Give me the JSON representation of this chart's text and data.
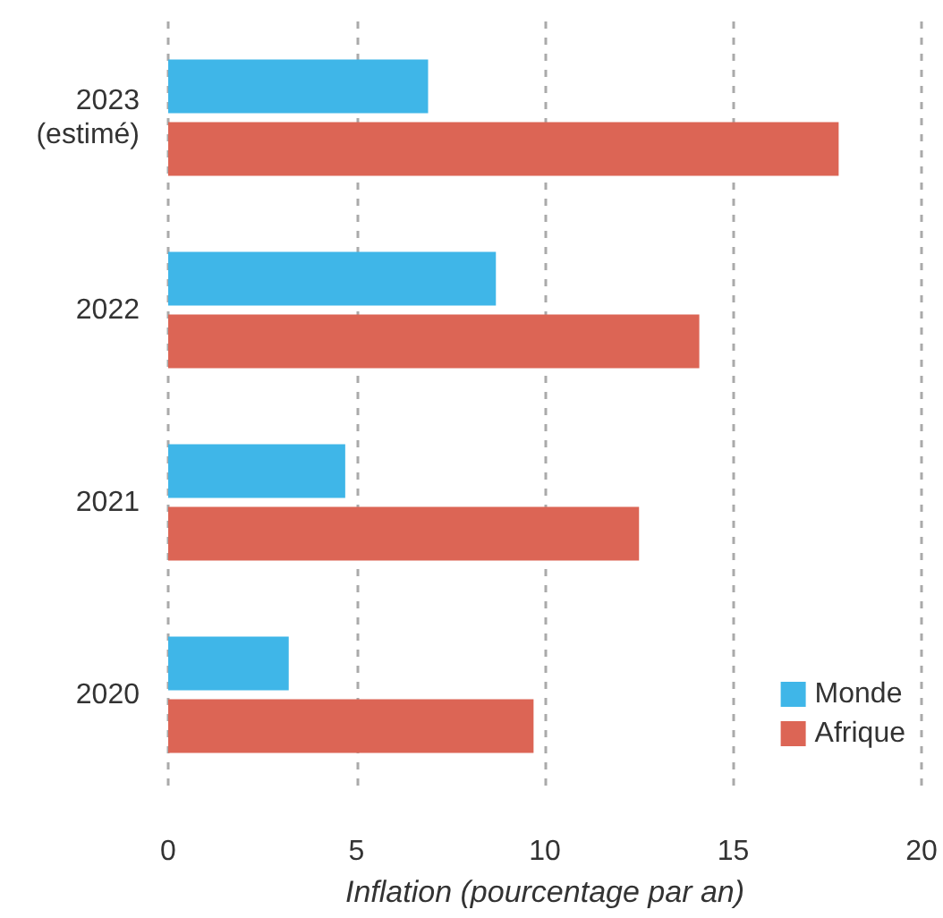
{
  "chart_data": {
    "type": "bar",
    "orientation": "horizontal",
    "categories": [
      "2023\n(estimé)",
      "2022",
      "2021",
      "2020"
    ],
    "series": [
      {
        "name": "Monde",
        "color": "#3fb6e8",
        "values": [
          6.9,
          8.7,
          4.7,
          3.2
        ]
      },
      {
        "name": "Afrique",
        "color": "#dc6555",
        "values": [
          17.8,
          14.1,
          12.5,
          9.7
        ]
      }
    ],
    "xlabel": "Inflation (pourcentage par an)",
    "xlim": [
      0,
      20
    ],
    "xticks": [
      0,
      5,
      10,
      15,
      20
    ],
    "grid": "x",
    "legend": "bottom right"
  }
}
